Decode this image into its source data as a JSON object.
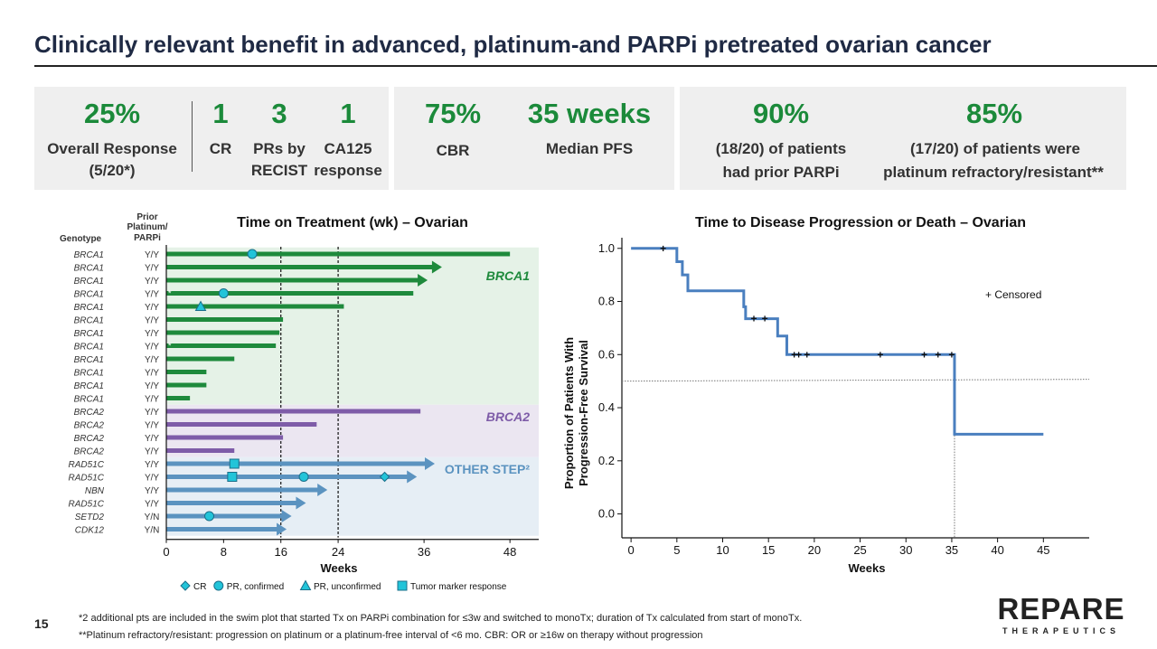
{
  "title": "Clinically relevant benefit in advanced, platinum-and PARPi pretreated ovarian cancer",
  "stats": {
    "overall_response_value": "25%",
    "overall_response_label1": "Overall Response",
    "overall_response_label2": "(5/20*)",
    "cr_value": "1",
    "cr_label": "CR",
    "pr_value": "3",
    "pr_label1": "PRs by",
    "pr_label2": "RECIST",
    "ca125_value": "1",
    "ca125_label1": "CA125",
    "ca125_label2": "response",
    "cbr_value": "75%",
    "cbr_label": "CBR",
    "pfs_value": "35 weeks",
    "pfs_label": "Median PFS",
    "parpi_value": "90%",
    "parpi_label1": "(18/20) of patients",
    "parpi_label2": "had prior PARPi",
    "plat_value": "85%",
    "plat_label1": "(17/20) of patients were",
    "plat_label2": "platinum refractory/resistant**"
  },
  "chart_data": [
    {
      "type": "bar",
      "title": "Time on Treatment (wk) – Ovarian",
      "xlabel": "Weeks",
      "xlim": [
        0,
        52
      ],
      "xticks": [
        0,
        8,
        16,
        24,
        36,
        48
      ],
      "ref_lines": [
        16,
        24
      ],
      "col_header_genotype": "Genotype",
      "col_header_prior1": "Prior",
      "col_header_prior2": "Platinum/",
      "col_header_prior3": "PARPi",
      "groups": [
        {
          "name": "BRCA1",
          "color": "#1e8a3c",
          "bg": "#e5f2e7"
        },
        {
          "name": "BRCA2",
          "color": "#7e5ca8",
          "bg": "#ebe6f1"
        },
        {
          "name": "OTHER STEP²",
          "color": "#5b93c0",
          "bg": "#e6eef5"
        }
      ],
      "rows": [
        {
          "genotype": "BRCA1",
          "prior": "Y/Y",
          "weeks": 48,
          "group": 0,
          "arrow": false,
          "star": false,
          "markers": [
            {
              "type": "pr",
              "week": 12
            }
          ]
        },
        {
          "genotype": "BRCA1",
          "prior": "Y/Y",
          "weeks": 38.5,
          "group": 0,
          "arrow": true,
          "star": false,
          "markers": []
        },
        {
          "genotype": "BRCA1",
          "prior": "Y/Y",
          "weeks": 36.5,
          "group": 0,
          "arrow": true,
          "star": false,
          "markers": []
        },
        {
          "genotype": "BRCA1",
          "prior": "Y/Y",
          "weeks": 34.5,
          "group": 0,
          "arrow": false,
          "star": true,
          "markers": [
            {
              "type": "pr",
              "week": 8
            }
          ]
        },
        {
          "genotype": "BRCA1",
          "prior": "Y/Y",
          "weeks": 24.8,
          "group": 0,
          "arrow": false,
          "star": false,
          "markers": [
            {
              "type": "pru",
              "week": 4.8
            }
          ]
        },
        {
          "genotype": "BRCA1",
          "prior": "Y/Y",
          "weeks": 16.3,
          "group": 0,
          "arrow": false,
          "star": false,
          "markers": []
        },
        {
          "genotype": "BRCA1",
          "prior": "Y/Y",
          "weeks": 15.8,
          "group": 0,
          "arrow": false,
          "star": false,
          "markers": []
        },
        {
          "genotype": "BRCA1",
          "prior": "Y/Y",
          "weeks": 15.3,
          "group": 0,
          "arrow": false,
          "star": true,
          "markers": []
        },
        {
          "genotype": "BRCA1",
          "prior": "Y/Y",
          "weeks": 9.5,
          "group": 0,
          "arrow": false,
          "star": false,
          "markers": []
        },
        {
          "genotype": "BRCA1",
          "prior": "Y/Y",
          "weeks": 5.6,
          "group": 0,
          "arrow": false,
          "star": false,
          "markers": []
        },
        {
          "genotype": "BRCA1",
          "prior": "Y/Y",
          "weeks": 5.6,
          "group": 0,
          "arrow": false,
          "star": false,
          "markers": []
        },
        {
          "genotype": "BRCA1",
          "prior": "Y/Y",
          "weeks": 3.3,
          "group": 0,
          "arrow": false,
          "star": false,
          "markers": []
        },
        {
          "genotype": "BRCA2",
          "prior": "Y/Y",
          "weeks": 35.5,
          "group": 1,
          "arrow": false,
          "star": false,
          "markers": []
        },
        {
          "genotype": "BRCA2",
          "prior": "Y/Y",
          "weeks": 21,
          "group": 1,
          "arrow": false,
          "star": false,
          "markers": []
        },
        {
          "genotype": "BRCA2",
          "prior": "Y/Y",
          "weeks": 16.3,
          "group": 1,
          "arrow": false,
          "star": false,
          "markers": []
        },
        {
          "genotype": "BRCA2",
          "prior": "Y/Y",
          "weeks": 9.5,
          "group": 1,
          "arrow": false,
          "star": false,
          "markers": []
        },
        {
          "genotype": "RAD51C",
          "prior": "Y/Y",
          "weeks": 37.5,
          "group": 2,
          "arrow": true,
          "star": false,
          "markers": [
            {
              "type": "tm",
              "week": 9.5
            }
          ]
        },
        {
          "genotype": "RAD51C",
          "prior": "Y/Y",
          "weeks": 35,
          "group": 2,
          "arrow": true,
          "star": false,
          "markers": [
            {
              "type": "tm",
              "week": 9.2
            },
            {
              "type": "pr",
              "week": 19.2
            },
            {
              "type": "cr",
              "week": 30.5
            }
          ]
        },
        {
          "genotype": "NBN",
          "prior": "Y/Y",
          "weeks": 22.5,
          "group": 2,
          "arrow": true,
          "star": false,
          "markers": []
        },
        {
          "genotype": "RAD51C",
          "prior": "Y/Y",
          "weeks": 19.5,
          "group": 2,
          "arrow": true,
          "star": false,
          "markers": []
        },
        {
          "genotype": "SETD2",
          "prior": "Y/N",
          "weeks": 17.5,
          "group": 2,
          "arrow": true,
          "star": false,
          "markers": [
            {
              "type": "pr",
              "week": 6
            }
          ]
        },
        {
          "genotype": "CDK12",
          "prior": "Y/N",
          "weeks": 16.8,
          "group": 2,
          "arrow": true,
          "star": false,
          "markers": []
        }
      ],
      "legend": [
        {
          "type": "cr",
          "label": "CR"
        },
        {
          "type": "pr",
          "label": "PR, confirmed"
        },
        {
          "type": "pru",
          "label": "PR, unconfirmed"
        },
        {
          "type": "tm",
          "label": "Tumor marker response"
        }
      ]
    },
    {
      "type": "line",
      "title": "Time to Disease Progression or Death – Ovarian",
      "xlabel": "Weeks",
      "ylabel": "Proportion of Patients With",
      "ylabel2": "Progression-Free Survival",
      "xlim": [
        -1,
        50
      ],
      "ylim": [
        -0.09,
        1.04
      ],
      "xticks": [
        0,
        5,
        10,
        15,
        20,
        25,
        30,
        35,
        40,
        45
      ],
      "yticks": [
        0.0,
        0.2,
        0.4,
        0.6,
        0.8,
        1.0
      ],
      "color": "#4a7fbf",
      "km_steps": [
        [
          0,
          1.0
        ],
        [
          5,
          1.0
        ],
        [
          5,
          0.95
        ],
        [
          5.6,
          0.95
        ],
        [
          5.6,
          0.9
        ],
        [
          6.2,
          0.9
        ],
        [
          6.2,
          0.84
        ],
        [
          12.3,
          0.84
        ],
        [
          12.3,
          0.78
        ],
        [
          12.5,
          0.78
        ],
        [
          12.5,
          0.735
        ],
        [
          16,
          0.735
        ],
        [
          16,
          0.67
        ],
        [
          17,
          0.67
        ],
        [
          17,
          0.6
        ],
        [
          35.3,
          0.6
        ],
        [
          35.3,
          0.3
        ],
        [
          45,
          0.3
        ]
      ],
      "censored": [
        [
          3.5,
          1.0
        ],
        [
          13.4,
          0.735
        ],
        [
          14.6,
          0.735
        ],
        [
          17.8,
          0.6
        ],
        [
          18.3,
          0.6
        ],
        [
          19.2,
          0.6
        ],
        [
          27.2,
          0.6
        ],
        [
          32,
          0.6
        ],
        [
          33.5,
          0.6
        ],
        [
          35,
          0.6
        ]
      ],
      "median_line_y": 0.5,
      "median_x": 35.3,
      "legend_label": "+ Censored"
    }
  ],
  "footnotes": {
    "line1": "*2 additional pts are included in the swim plot that started Tx on PARPi combination for ≤3w and switched to monoTx; duration of Tx calculated from start of monoTx.",
    "line2": "**Platinum refractory/resistant: progression on platinum or a platinum-free interval of <6 mo. CBR: OR or ≥16w on therapy without progression"
  },
  "page_number": "15",
  "logo": {
    "main": "REPARE",
    "sub": "THERAPEUTICS"
  }
}
